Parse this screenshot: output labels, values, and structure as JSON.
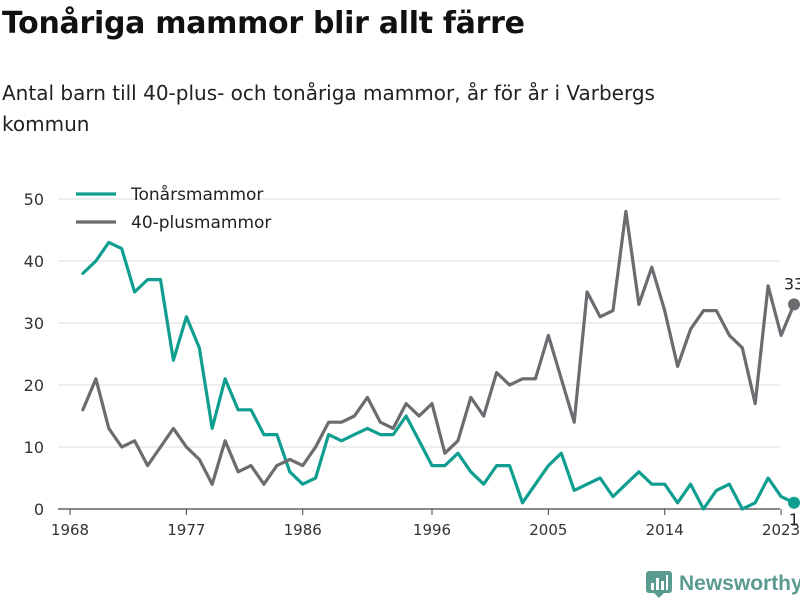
{
  "title": "Tonåriga mammor blir allt färre",
  "subtitle": "Antal barn till 40-plus- och tonåriga mammor, år för år i Varbergs kommun",
  "brand": {
    "name": "Newsworthy",
    "icon": "newsworthy-logo-icon"
  },
  "chart_data": {
    "type": "line",
    "title": "Tonåriga mammor blir allt färre",
    "subtitle": "Antal barn till 40-plus- och tonåriga mammor, år för år i Varbergs kommun",
    "xlabel": "",
    "ylabel": "",
    "xlim": [
      1968,
      2024
    ],
    "ylim": [
      0,
      50
    ],
    "x_ticks": [
      1968,
      1977,
      1986,
      1996,
      2005,
      2014,
      2023
    ],
    "y_ticks": [
      0,
      10,
      20,
      30,
      40,
      50
    ],
    "grid": "horizontal",
    "legend_position": "top-left",
    "x": [
      1969,
      1970,
      1971,
      1972,
      1973,
      1974,
      1975,
      1976,
      1977,
      1978,
      1979,
      1980,
      1981,
      1982,
      1983,
      1984,
      1985,
      1986,
      1987,
      1988,
      1989,
      1990,
      1991,
      1992,
      1993,
      1994,
      1995,
      1996,
      1997,
      1998,
      1999,
      2000,
      2001,
      2002,
      2003,
      2004,
      2005,
      2006,
      2007,
      2008,
      2009,
      2010,
      2011,
      2012,
      2013,
      2014,
      2015,
      2016,
      2017,
      2018,
      2019,
      2020,
      2021,
      2022,
      2023,
      2024
    ],
    "series": [
      {
        "name": "Tonårsmammor",
        "color": "#0f9e90",
        "values": [
          38,
          40,
          43,
          42,
          35,
          37,
          37,
          24,
          31,
          26,
          13,
          21,
          16,
          16,
          12,
          12,
          6,
          4,
          5,
          12,
          11,
          12,
          13,
          12,
          12,
          15,
          11,
          7,
          7,
          9,
          6,
          4,
          7,
          7,
          1,
          4,
          7,
          9,
          3,
          4,
          5,
          2,
          4,
          6,
          4,
          4,
          1,
          4,
          0,
          3,
          4,
          0,
          1,
          5,
          2,
          1
        ],
        "end_label": "1"
      },
      {
        "name": "40-plusmammor",
        "color": "#6b6b70",
        "values": [
          16,
          21,
          13,
          10,
          11,
          7,
          10,
          13,
          10,
          8,
          4,
          11,
          6,
          7,
          4,
          7,
          8,
          7,
          10,
          14,
          14,
          15,
          18,
          14,
          13,
          17,
          15,
          17,
          9,
          11,
          18,
          15,
          22,
          20,
          21,
          21,
          28,
          21,
          14,
          35,
          31,
          32,
          48,
          33,
          39,
          32,
          23,
          29,
          32,
          32,
          28,
          26,
          17,
          36,
          28,
          33
        ],
        "end_label": "33"
      }
    ]
  }
}
